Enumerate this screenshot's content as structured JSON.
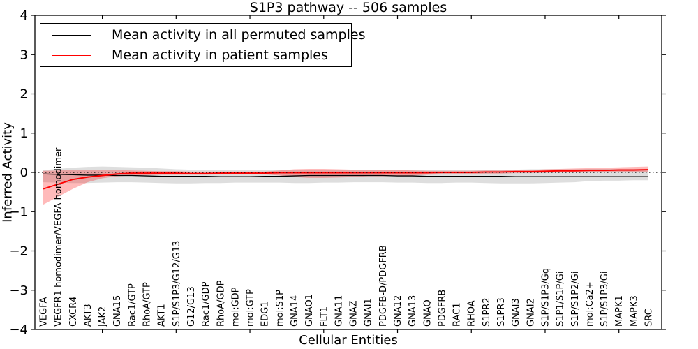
{
  "chart_data": {
    "type": "line",
    "title": "S1P3 pathway -- 506 samples",
    "xlabel": "Cellular Entities",
    "ylabel": "Inferred Activity",
    "ylim": [
      -4,
      4
    ],
    "y_ticks": [
      {
        "value": 4,
        "label": "4"
      },
      {
        "value": 3,
        "label": "3"
      },
      {
        "value": 2,
        "label": "2"
      },
      {
        "value": 1,
        "label": "1"
      },
      {
        "value": 0,
        "label": "0"
      },
      {
        "value": -1,
        "label": "−1"
      },
      {
        "value": -2,
        "label": "−2"
      },
      {
        "value": -3,
        "label": "−3"
      },
      {
        "value": -4,
        "label": "−4"
      }
    ],
    "grid": false,
    "zero_line_style": "dotted",
    "legend_position": "upper left",
    "x_major_tick_indices": [
      4,
      9,
      14,
      19,
      24,
      29,
      34,
      39
    ],
    "categories": [
      "VEGFA",
      "VEGFR1 homodimer/VEGFA homodimer",
      "CXCR4",
      "AKT3",
      "JAK2",
      "GNA15",
      "Rac1/GTP",
      "RhoA/GTP",
      "AKT1",
      "S1P/S1P3/G12/G13",
      "G12/G13",
      "Rac1/GDP",
      "RhoA/GDP",
      "mol:GDP",
      "mol:GTP",
      "EDG1",
      "mol:S1P",
      "GNA14",
      "GNAO1",
      "FLT1",
      "GNA11",
      "GNAZ",
      "GNAI1",
      "PDGFB-D/PDGFRB",
      "GNA12",
      "GNA13",
      "GNAQ",
      "PDGFRB",
      "RAC1",
      "RHOA",
      "S1PR2",
      "S1PR3",
      "GNAI3",
      "GNAI2",
      "S1P/S1P3/Gq",
      "S1P1/S1P/Gi",
      "S1P/S1P2/Gi",
      "mol:Ca2+",
      "S1P/S1P3/Gi",
      "MAPK1",
      "MAPK3",
      "SRC"
    ],
    "series": [
      {
        "name": "Mean activity in all permuted samples",
        "color": "#000000",
        "values": [
          -0.04,
          -0.05,
          -0.06,
          -0.07,
          -0.07,
          -0.08,
          -0.08,
          -0.09,
          -0.1,
          -0.1,
          -0.1,
          -0.1,
          -0.11,
          -0.11,
          -0.11,
          -0.1,
          -0.1,
          -0.09,
          -0.08,
          -0.08,
          -0.08,
          -0.08,
          -0.08,
          -0.08,
          -0.09,
          -0.09,
          -0.1,
          -0.1,
          -0.1,
          -0.1,
          -0.1,
          -0.1,
          -0.11,
          -0.11,
          -0.11,
          -0.11,
          -0.11,
          -0.11,
          -0.11,
          -0.11,
          -0.11,
          -0.11
        ],
        "band": {
          "color": "#999999",
          "opacity": 0.32,
          "upper": [
            0.06,
            0.09,
            0.12,
            0.14,
            0.15,
            0.14,
            0.13,
            0.12,
            0.1,
            0.08,
            0.07,
            0.07,
            0.06,
            0.06,
            0.06,
            0.06,
            0.06,
            0.07,
            0.07,
            0.07,
            0.07,
            0.07,
            0.07,
            0.07,
            0.07,
            0.06,
            0.06,
            0.06,
            0.06,
            0.06,
            0.07,
            0.07,
            0.07,
            0.08,
            0.08,
            0.08,
            0.08,
            0.09,
            0.09,
            0.09,
            0.09,
            0.09
          ],
          "lower": [
            -0.25,
            -0.26,
            -0.27,
            -0.27,
            -0.26,
            -0.25,
            -0.25,
            -0.26,
            -0.27,
            -0.28,
            -0.28,
            -0.27,
            -0.27,
            -0.26,
            -0.26,
            -0.26,
            -0.26,
            -0.27,
            -0.27,
            -0.26,
            -0.26,
            -0.25,
            -0.25,
            -0.25,
            -0.26,
            -0.26,
            -0.27,
            -0.27,
            -0.26,
            -0.26,
            -0.27,
            -0.28,
            -0.28,
            -0.28,
            -0.27,
            -0.26,
            -0.25,
            -0.22,
            -0.21,
            -0.21,
            -0.2,
            -0.2
          ]
        }
      },
      {
        "name": "Mean activity in patient samples",
        "color": "#ff0000",
        "values": [
          -0.42,
          -0.3,
          -0.18,
          -0.12,
          -0.08,
          -0.04,
          -0.02,
          -0.02,
          -0.02,
          -0.02,
          -0.03,
          -0.03,
          -0.02,
          -0.02,
          -0.02,
          -0.02,
          -0.01,
          -0.01,
          -0.01,
          -0.01,
          -0.01,
          -0.01,
          -0.01,
          -0.01,
          -0.01,
          -0.01,
          -0.01,
          0.0,
          0.0,
          0.0,
          0.01,
          0.01,
          0.02,
          0.02,
          0.03,
          0.04,
          0.04,
          0.05,
          0.05,
          0.06,
          0.06,
          0.07
        ],
        "band": {
          "color": "#ff0000",
          "opacity": 0.27,
          "upper": [
            0.04,
            0.05,
            0.06,
            0.06,
            0.06,
            0.06,
            0.05,
            0.04,
            0.03,
            0.03,
            0.02,
            0.02,
            0.02,
            0.02,
            0.02,
            0.02,
            0.05,
            0.08,
            0.09,
            0.09,
            0.08,
            0.07,
            0.06,
            0.07,
            0.06,
            0.05,
            0.04,
            0.04,
            0.04,
            0.04,
            0.05,
            0.05,
            0.06,
            0.06,
            0.08,
            0.09,
            0.1,
            0.11,
            0.12,
            0.13,
            0.14,
            0.15
          ],
          "lower": [
            -0.82,
            -0.62,
            -0.42,
            -0.25,
            -0.15,
            -0.1,
            -0.08,
            -0.07,
            -0.06,
            -0.06,
            -0.06,
            -0.06,
            -0.05,
            -0.05,
            -0.05,
            -0.05,
            -0.08,
            -0.12,
            -0.14,
            -0.14,
            -0.13,
            -0.12,
            -0.1,
            -0.1,
            -0.09,
            -0.08,
            -0.06,
            -0.05,
            -0.04,
            -0.04,
            -0.03,
            -0.03,
            -0.02,
            -0.02,
            -0.01,
            0.0,
            0.0,
            0.0,
            0.01,
            0.01,
            0.01,
            0.02
          ]
        }
      }
    ]
  },
  "legend": {
    "items": [
      {
        "label": "Mean activity in all permuted samples",
        "color": "#000000"
      },
      {
        "label": "Mean activity in patient samples",
        "color": "#ff0000"
      }
    ]
  }
}
